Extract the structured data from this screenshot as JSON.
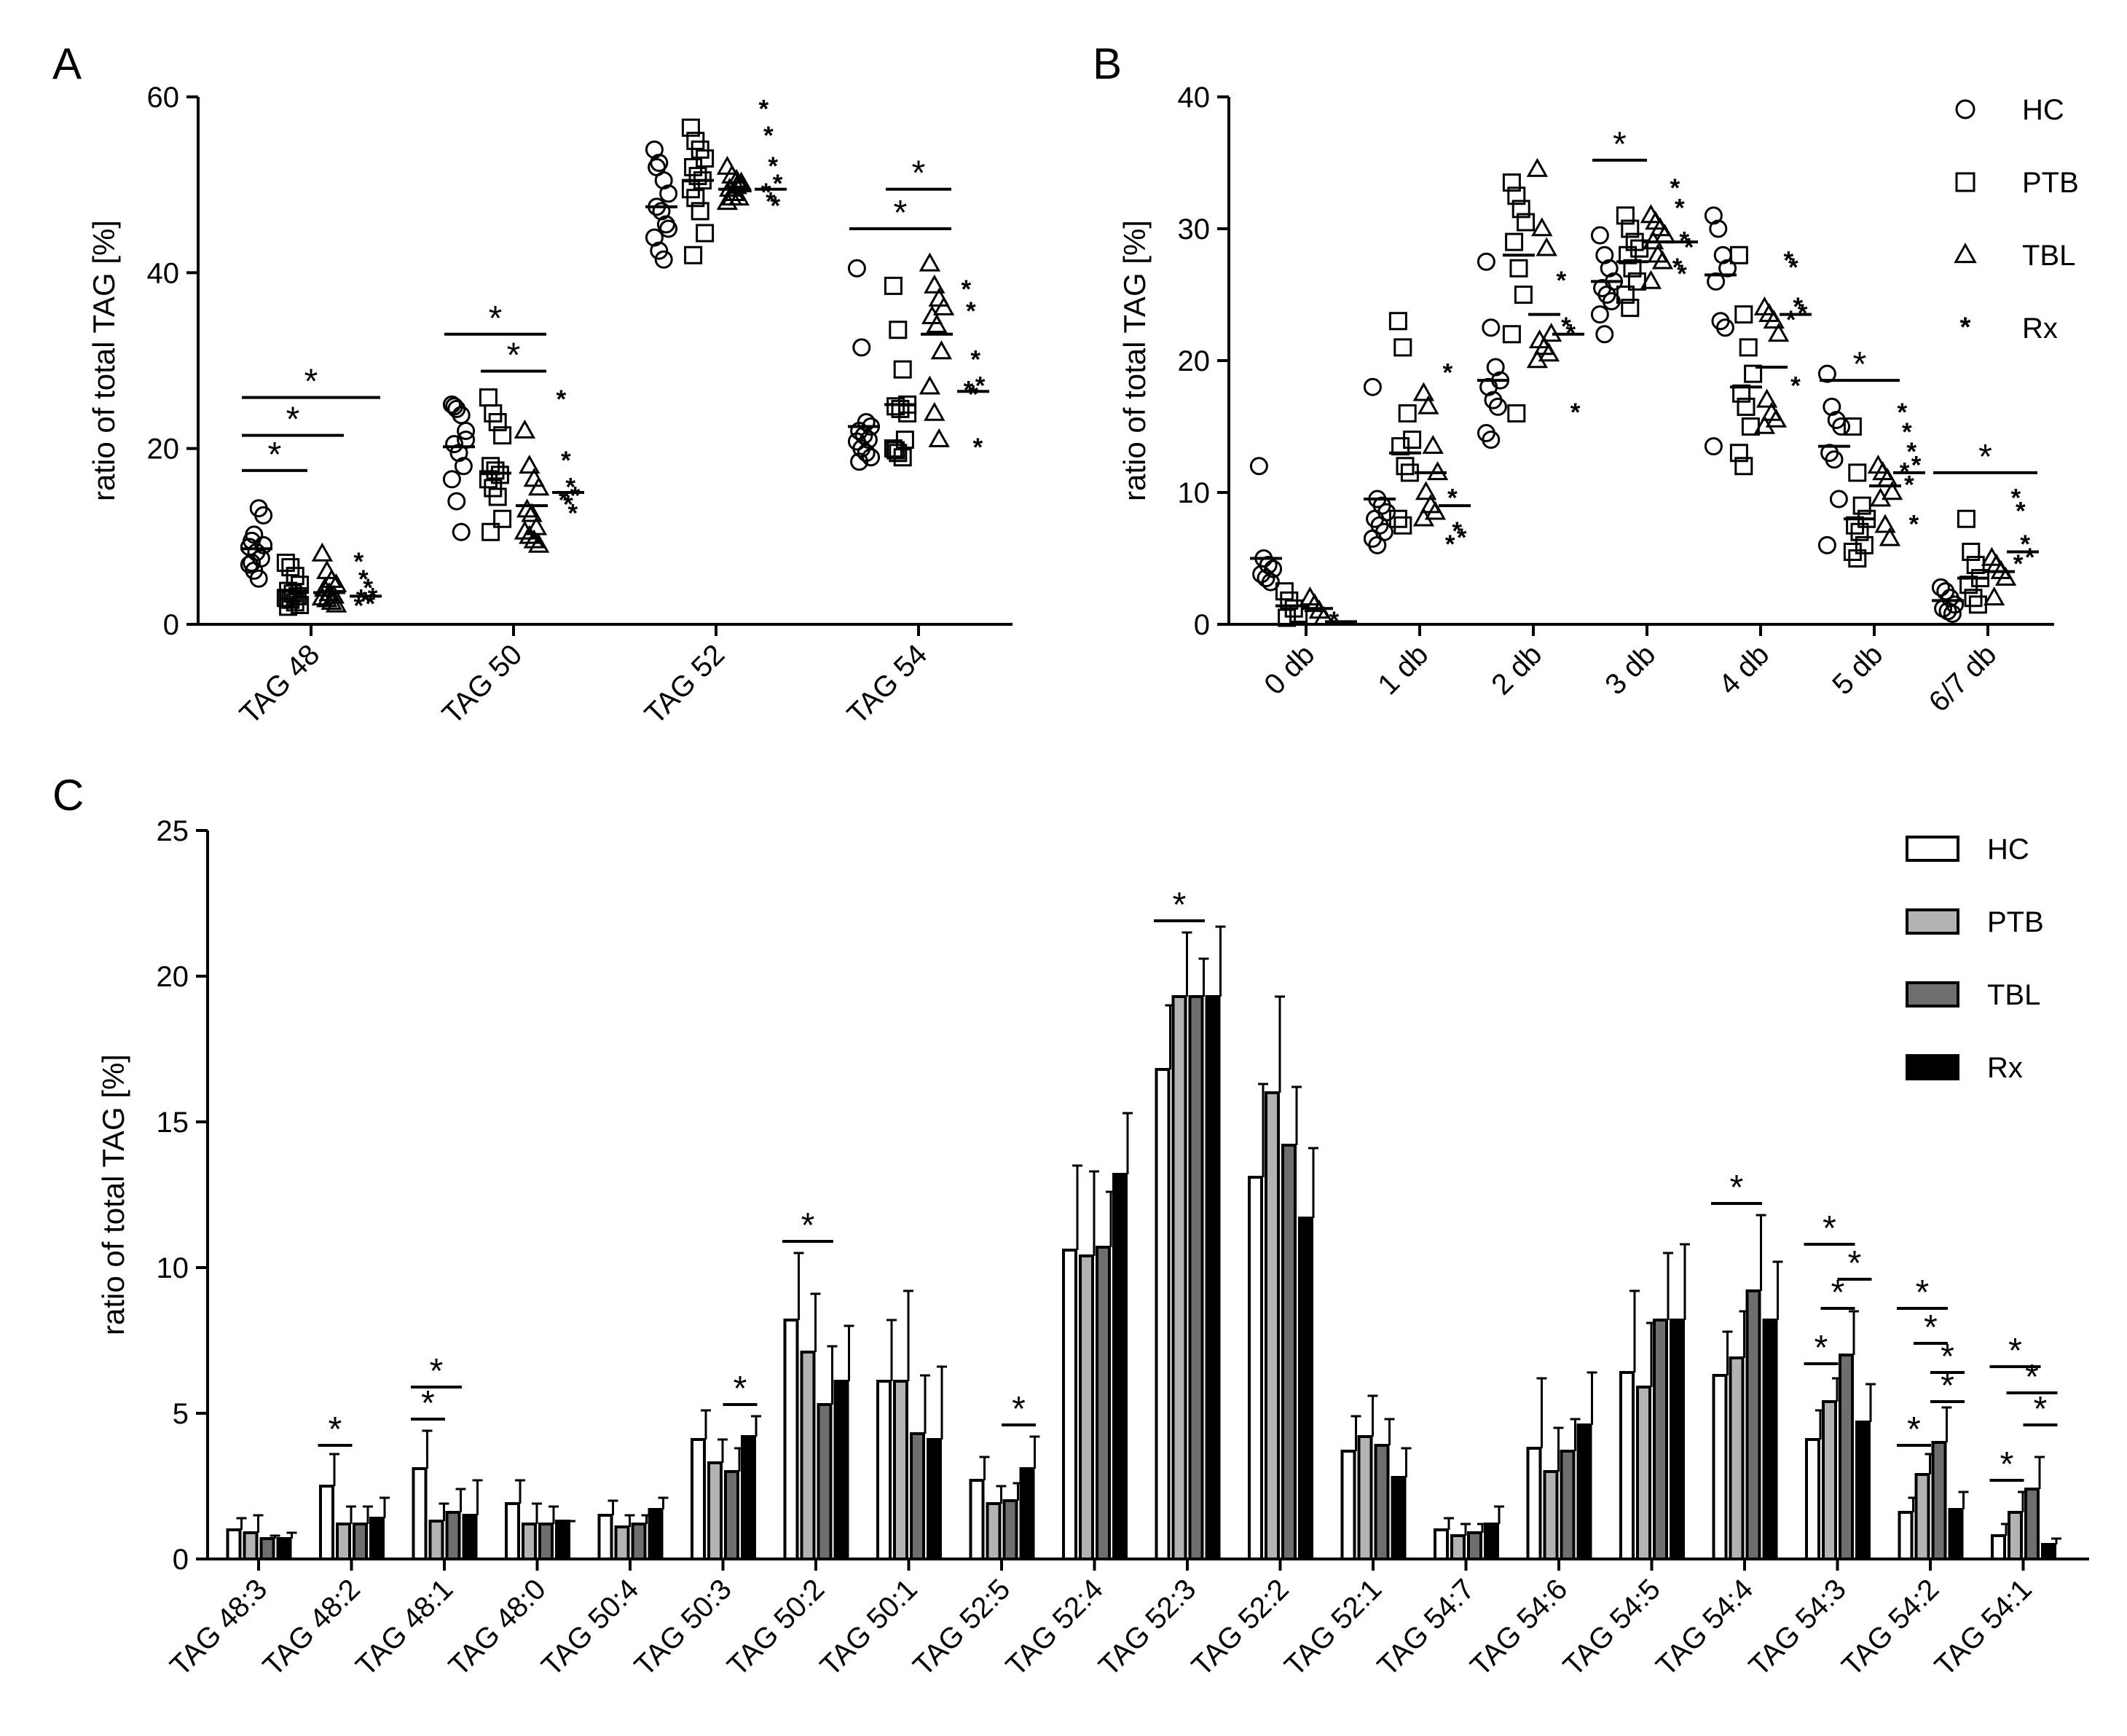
{
  "chart_data": [
    {
      "panel": "A",
      "type": "scatter",
      "ylabel": "ratio of total TAG [%]",
      "ylim": [
        0,
        60
      ],
      "yticks": [
        0,
        20,
        40,
        60
      ],
      "categories": [
        "TAG 48",
        "TAG 50",
        "TAG 52",
        "TAG 54"
      ],
      "groups": [
        "HC",
        "PTB",
        "TBL",
        "Rx"
      ],
      "points": {
        "HC": [
          [
            8.8,
            10.2,
            13.2,
            12.4,
            9.5,
            8.2,
            7.5,
            6.8,
            6.1,
            5.2,
            9.0,
            7.0
          ],
          [
            25.0,
            24.5,
            23.8,
            22.0,
            20.5,
            19.5,
            18.0,
            16.5,
            14.0,
            10.5,
            21.0,
            24.8
          ],
          [
            54.0,
            52.5,
            50.5,
            49.0,
            47.5,
            47.0,
            45.5,
            44.0,
            42.5,
            41.5,
            45.0,
            52.0
          ],
          [
            40.5,
            31.5,
            23.0,
            22.5,
            22.0,
            21.5,
            21.0,
            20.8,
            20.0,
            19.5,
            19.0,
            18.5
          ]
        ],
        "PTB": [
          [
            7.0,
            6.5,
            5.5,
            4.5,
            3.8,
            3.5,
            3.2,
            3.0,
            2.8,
            2.5,
            2.2,
            2.0
          ],
          [
            25.8,
            24.0,
            23.0,
            21.5,
            18.0,
            17.5,
            17.0,
            16.5,
            15.5,
            14.5,
            12.0,
            10.5
          ],
          [
            56.5,
            55.0,
            54.0,
            53.0,
            52.0,
            51.0,
            50.5,
            49.5,
            48.5,
            47.0,
            44.5,
            42.0
          ],
          [
            38.5,
            33.5,
            29.0,
            25.0,
            24.8,
            24.5,
            21.0,
            20.0,
            19.5,
            19.0,
            24.0,
            19.8
          ]
        ],
        "TBL": [
          [
            8.0,
            6.0,
            5.0,
            4.5,
            4.0,
            3.5,
            3.2,
            3.0,
            2.8,
            2.5,
            2.2
          ],
          [
            22.0,
            18.0,
            16.5,
            15.5,
            13.0,
            12.5,
            11.0,
            10.5,
            10.0,
            9.5,
            9.0
          ],
          [
            52.0,
            51.0,
            50.5,
            50.0,
            49.5,
            49.0,
            48.5,
            48.0,
            48.5,
            49.8,
            50.2
          ],
          [
            41.0,
            38.5,
            37.0,
            36.0,
            35.0,
            34.0,
            31.0,
            27.0,
            24.0,
            21.0
          ]
        ],
        "Rx": [
          [
            7.0,
            5.0,
            4.0,
            3.0,
            2.8,
            2.5,
            2.2,
            2.0
          ],
          [
            25.5,
            18.5,
            15.5,
            14.5,
            14.0,
            13.5,
            12.5
          ],
          [
            58.5,
            55.5,
            52.0,
            50.0,
            49.0,
            48.0,
            47.5
          ],
          [
            38.0,
            35.5,
            30.0,
            27.0,
            26.5,
            26.0,
            20.0
          ]
        ]
      },
      "means": [
        [
          8.6,
          3.8,
          3.6,
          3.2
        ],
        [
          20.2,
          17.2,
          13.5,
          15.0
        ],
        [
          47.5,
          50.5,
          49.5,
          49.5
        ],
        [
          22.5,
          25.0,
          33.0,
          26.5
        ]
      ],
      "significance": [
        {
          "cat": 0,
          "g1": 0,
          "g2": 3,
          "y": 25.8,
          "label": "*"
        },
        {
          "cat": 0,
          "g1": 0,
          "g2": 2,
          "y": 21.5,
          "label": "*"
        },
        {
          "cat": 0,
          "g1": 0,
          "g2": 1,
          "y": 17.5,
          "label": "*"
        },
        {
          "cat": 1,
          "g1": 0,
          "g2": 2,
          "y": 33.0,
          "label": "*"
        },
        {
          "cat": 1,
          "g1": 1,
          "g2": 2,
          "y": 28.8,
          "label": "*"
        },
        {
          "cat": 3,
          "g1": 0,
          "g2": 2,
          "y": 45.0,
          "label": "*"
        },
        {
          "cat": 3,
          "g1": 1,
          "g2": 2,
          "y": 49.5,
          "label": "*"
        }
      ]
    },
    {
      "panel": "B",
      "type": "scatter",
      "ylabel": "ratio of total TAG [%]",
      "ylim": [
        0,
        40
      ],
      "yticks": [
        0,
        10,
        20,
        30,
        40
      ],
      "categories": [
        "0 db",
        "1 db",
        "2 db",
        "3 db",
        "4 db",
        "5 db",
        "6/7 db"
      ],
      "groups": [
        "HC",
        "PTB",
        "TBL",
        "Rx"
      ],
      "legend": [
        {
          "label": "HC",
          "marker": "circle"
        },
        {
          "label": "PTB",
          "marker": "square"
        },
        {
          "label": "TBL",
          "marker": "triangle"
        },
        {
          "label": "Rx",
          "marker": "asterisk"
        }
      ],
      "points": {
        "HC": [
          [
            12.0,
            5.0,
            4.5,
            4.2,
            3.8,
            3.5,
            3.2
          ],
          [
            18.0,
            9.5,
            9.0,
            8.5,
            8.0,
            7.5,
            7.0,
            6.5,
            6.0
          ],
          [
            27.5,
            22.5,
            19.5,
            18.5,
            18.0,
            17.0,
            16.5,
            14.5,
            14.0
          ],
          [
            29.5,
            28.0,
            27.0,
            26.0,
            25.5,
            25.0,
            24.5,
            23.5,
            22.0
          ],
          [
            31.0,
            30.0,
            28.0,
            27.0,
            26.0,
            23.0,
            22.5,
            13.5
          ],
          [
            19.0,
            16.5,
            15.5,
            15.0,
            13.0,
            12.5,
            9.5,
            6.0
          ],
          [
            2.8,
            2.5,
            2.0,
            1.5,
            1.2,
            1.0,
            0.8
          ]
        ],
        "PTB": [
          [
            2.5,
            1.8,
            1.2,
            0.8,
            0.5
          ],
          [
            23.0,
            21.0,
            16.0,
            14.0,
            13.5,
            12.0,
            11.5,
            8.0,
            7.5
          ],
          [
            33.5,
            32.5,
            31.5,
            30.5,
            29.0,
            27.0,
            25.0,
            22.0,
            16.0
          ],
          [
            31.0,
            30.0,
            29.0,
            28.5,
            28.0,
            27.0,
            26.0,
            25.0,
            24.0
          ],
          [
            28.0,
            23.5,
            21.0,
            19.0,
            17.5,
            16.5,
            15.0,
            13.0,
            12.0
          ],
          [
            15.0,
            11.5,
            9.0,
            8.0,
            7.5,
            7.0,
            6.0,
            5.5,
            5.0
          ],
          [
            8.0,
            5.5,
            4.5,
            3.5,
            3.0,
            2.0,
            1.5
          ]
        ],
        "TBL": [
          [
            2.0,
            1.5,
            1.0,
            0.5
          ],
          [
            17.5,
            16.5,
            13.5,
            11.5,
            10.0,
            9.0,
            8.5,
            8.0
          ],
          [
            34.5,
            30.0,
            28.5,
            22.0,
            21.5,
            21.0,
            20.5,
            20.0
          ],
          [
            31.0,
            30.5,
            30.0,
            29.5,
            29.0,
            28.0,
            27.5,
            26.0
          ],
          [
            24.0,
            23.5,
            23.0,
            22.0,
            17.0,
            16.0,
            15.5,
            15.0
          ],
          [
            12.0,
            11.5,
            11.0,
            10.0,
            9.5,
            7.5,
            6.5
          ],
          [
            5.0,
            4.5,
            4.0,
            3.5,
            2.0
          ]
        ],
        "Rx": [
          [
            0.2
          ],
          [
            19.0,
            9.5,
            7.0,
            6.5,
            6.0
          ],
          [
            26.0,
            22.5,
            22.0,
            16.0
          ],
          [
            33.0,
            31.5,
            29.0,
            28.5,
            27.0,
            26.5
          ],
          [
            27.5,
            27.0,
            24.0,
            23.5,
            23.0,
            18.0
          ],
          [
            16.0,
            14.5,
            13.0,
            12.0,
            11.5,
            10.5,
            7.5
          ],
          [
            9.5,
            8.5,
            6.0,
            5.0,
            4.5
          ]
        ]
      },
      "means": [
        [
          5.0,
          1.4,
          1.2,
          0.2
        ],
        [
          9.5,
          13.0,
          11.5,
          9.0
        ],
        [
          18.5,
          28.0,
          23.5,
          22.0
        ],
        [
          26.0,
          27.5,
          29.0,
          29.0
        ],
        [
          26.5,
          18.0,
          19.5,
          23.5
        ],
        [
          13.5,
          8.0,
          10.5,
          11.5
        ],
        [
          1.8,
          3.5,
          4.0,
          5.5
        ]
      ],
      "significance": [
        {
          "cat": 3,
          "g1": 0,
          "g2": 1,
          "y": 35.2,
          "label": "*"
        },
        {
          "cat": 5,
          "g1": 0,
          "g2": 2,
          "y": 18.5,
          "label": "*"
        },
        {
          "cat": 6,
          "g1": 0,
          "g2": 3,
          "y": 11.5,
          "label": "*"
        }
      ]
    },
    {
      "panel": "C",
      "type": "bar",
      "ylabel": "ratio of total TAG [%]",
      "ylim": [
        0,
        25
      ],
      "yticks": [
        0,
        5,
        10,
        15,
        20,
        25
      ],
      "categories": [
        "TAG 48:3",
        "TAG 48:2",
        "TAG 48:1",
        "TAG 48:0",
        "TAG 50:4",
        "TAG 50:3",
        "TAG 50:2",
        "TAG 50:1",
        "TAG 52:5",
        "TAG 52:4",
        "TAG 52:3",
        "TAG 52:2",
        "TAG 52:1",
        "TAG 54:7",
        "TAG 54:6",
        "TAG 54:5",
        "TAG 54:4",
        "TAG 54:3",
        "TAG 54:2",
        "TAG 54:1"
      ],
      "legend": [
        {
          "label": "HC",
          "color": "#ffffff"
        },
        {
          "label": "PTB",
          "color": "#b3b3b3"
        },
        {
          "label": "TBL",
          "color": "#6e6e6e"
        },
        {
          "label": "Rx",
          "color": "#000000"
        }
      ],
      "series": [
        {
          "name": "HC",
          "color": "#ffffff",
          "values": [
            1.0,
            2.5,
            3.1,
            1.9,
            1.5,
            4.1,
            8.2,
            6.1,
            2.7,
            10.6,
            16.8,
            13.1,
            3.7,
            1.0,
            3.8,
            6.4,
            6.3,
            4.1,
            1.6,
            0.8
          ],
          "errors": [
            0.4,
            1.1,
            1.3,
            0.8,
            0.5,
            1.0,
            2.3,
            2.1,
            0.8,
            2.9,
            2.2,
            3.2,
            1.2,
            0.4,
            2.4,
            2.8,
            1.5,
            1.0,
            0.5,
            0.4
          ]
        },
        {
          "name": "PTB",
          "color": "#b3b3b3",
          "values": [
            0.9,
            1.2,
            1.3,
            1.2,
            1.1,
            3.3,
            7.1,
            6.1,
            1.9,
            10.4,
            19.3,
            16.0,
            4.2,
            0.8,
            3.0,
            5.9,
            6.9,
            5.4,
            2.9,
            1.6
          ]
        },
        {
          "name": "TBL",
          "color": "#6e6e6e",
          "values": [
            0.7,
            1.2,
            1.6,
            1.2,
            1.2,
            3.0,
            5.3,
            4.3,
            2.0,
            10.7,
            19.3,
            14.2,
            3.9,
            0.9,
            3.7,
            8.2,
            9.2,
            7.0,
            4.0,
            2.4
          ]
        },
        {
          "name": "Rx",
          "color": "#000000",
          "values": [
            0.7,
            1.4,
            1.5,
            1.3,
            1.7,
            4.2,
            6.1,
            4.1,
            3.1,
            13.2,
            19.3,
            11.7,
            2.8,
            1.2,
            4.6,
            8.2,
            8.2,
            4.7,
            1.7,
            0.5
          ]
        }
      ],
      "errors": [
        [
          0.4,
          1.1,
          1.3,
          0.8,
          0.5,
          1.0,
          2.3,
          2.1,
          0.8,
          2.9,
          2.2,
          3.2,
          1.2,
          0.4,
          2.4,
          2.8,
          1.5,
          1.0,
          0.5,
          0.4
        ],
        [
          0.6,
          0.6,
          0.6,
          0.7,
          0.4,
          0.8,
          2.0,
          3.1,
          0.6,
          2.9,
          2.2,
          3.3,
          1.4,
          0.4,
          1.5,
          2.2,
          1.6,
          0.8,
          0.7,
          0.7
        ],
        [
          0.1,
          0.6,
          0.8,
          0.6,
          0.3,
          0.8,
          2.0,
          2.0,
          0.6,
          1.9,
          1.3,
          2.0,
          0.9,
          0.3,
          1.1,
          2.3,
          2.6,
          1.5,
          1.2,
          1.1
        ],
        [
          0.2,
          0.7,
          1.2,
          0.0,
          0.4,
          0.7,
          1.9,
          2.5,
          1.1,
          2.1,
          2.4,
          2.4,
          1.0,
          0.6,
          1.8,
          2.6,
          2.0,
          1.3,
          0.6,
          0.2
        ]
      ],
      "significance": [
        {
          "cat": 1,
          "g1": 0,
          "g2": 1,
          "y": 3.9,
          "label": "*"
        },
        {
          "cat": 2,
          "g1": 0,
          "g2": 1,
          "y": 4.8,
          "label": "*"
        },
        {
          "cat": 2,
          "g1": 0,
          "g2": 2,
          "y": 5.9,
          "label": "*"
        },
        {
          "cat": 5,
          "g1": 2,
          "g2": 3,
          "y": 5.3,
          "label": "*"
        },
        {
          "cat": 6,
          "g1": 0,
          "g2": 2,
          "y": 10.9,
          "label": "*"
        },
        {
          "cat": 8,
          "g1": 2,
          "g2": 3,
          "y": 4.6,
          "label": "*"
        },
        {
          "cat": 10,
          "g1": 0,
          "g2": 2,
          "y": 21.9,
          "label": "*"
        },
        {
          "cat": 16,
          "g1": 0,
          "g2": 2,
          "y": 12.2,
          "label": "*"
        },
        {
          "cat": 17,
          "g1": 0,
          "g2": 1,
          "y": 6.7,
          "label": "*"
        },
        {
          "cat": 17,
          "g1": 1,
          "g2": 2,
          "y": 8.6,
          "label": "*"
        },
        {
          "cat": 17,
          "g1": 2,
          "g2": 3,
          "y": 9.6,
          "label": "*"
        },
        {
          "cat": 17,
          "g1": 0,
          "g2": 2,
          "y": 10.8,
          "label": "*"
        },
        {
          "cat": 18,
          "g1": 0,
          "g2": 1,
          "y": 3.9,
          "label": "*"
        },
        {
          "cat": 18,
          "g1": 2,
          "g2": 3,
          "y": 5.4,
          "label": "*"
        },
        {
          "cat": 18,
          "g1": 2,
          "g2": 3,
          "y": 6.4,
          "label": "*"
        },
        {
          "cat": 18,
          "g1": 1,
          "g2": 2,
          "y": 7.4,
          "label": "*"
        },
        {
          "cat": 18,
          "g1": 0,
          "g2": 2,
          "y": 8.6,
          "label": "*"
        },
        {
          "cat": 19,
          "g1": 0,
          "g2": 1,
          "y": 2.7,
          "label": "*"
        },
        {
          "cat": 19,
          "g1": 2,
          "g2": 3,
          "y": 4.6,
          "label": "*"
        },
        {
          "cat": 19,
          "g1": 1,
          "g2": 3,
          "y": 5.7,
          "label": "*"
        },
        {
          "cat": 19,
          "g1": 0,
          "g2": 2,
          "y": 6.6,
          "label": "*"
        }
      ]
    }
  ],
  "panel_labels": {
    "a": "A",
    "b": "B",
    "c": "C"
  }
}
